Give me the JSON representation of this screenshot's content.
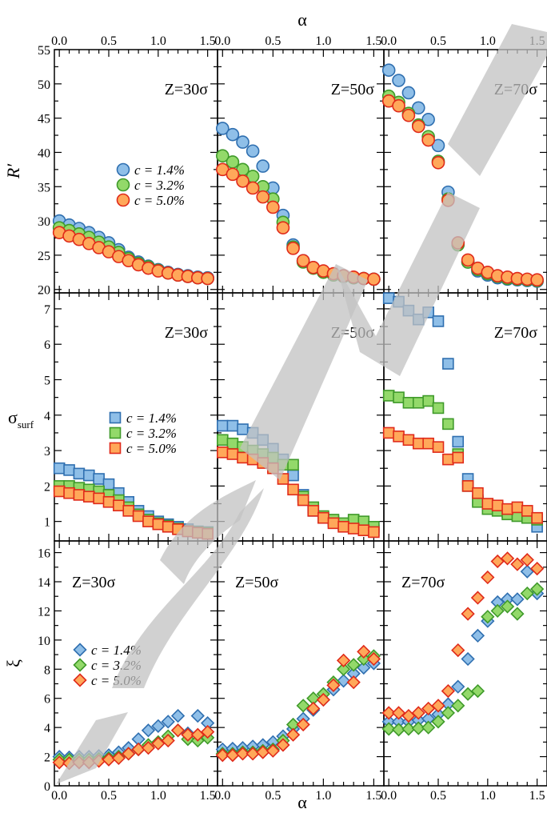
{
  "chart_data": {
    "type": "scatter",
    "x_label": "α",
    "x_ticks": [
      "0.0",
      "0.5",
      "1.0",
      "1.5"
    ],
    "xlim": [
      -0.05,
      1.6
    ],
    "x": [
      0.0,
      0.1,
      0.2,
      0.3,
      0.4,
      0.5,
      0.6,
      0.7,
      0.8,
      0.9,
      1.0,
      1.1,
      1.2,
      1.3,
      1.4,
      1.5
    ],
    "legend_labels": [
      "c = 1.4%",
      "c = 3.2%",
      "c = 5.0%"
    ],
    "series_colors": {
      "c14": {
        "fill": "#8fbfe8",
        "stroke": "#2f6fb0"
      },
      "c32": {
        "fill": "#93d96a",
        "stroke": "#3f9a2a"
      },
      "c50": {
        "fill": "#ffa85a",
        "stroke": "#e02a1a"
      }
    },
    "rows": [
      {
        "key": "R",
        "ylabel": "R′",
        "marker": "circle",
        "ylim": [
          19.5,
          55
        ],
        "y_ticks": [
          20,
          25,
          30,
          35,
          40,
          45,
          50,
          55
        ],
        "legend_panel": 0,
        "panels": [
          {
            "label": "Z=30σ",
            "c14": [
              30.0,
              29.4,
              28.9,
              28.3,
              27.6,
              26.8,
              25.8,
              24.7,
              24.0,
              23.4,
              22.9,
              22.5,
              22.2,
              22.0,
              21.8,
              21.7
            ],
            "c32": [
              29.0,
              28.6,
              28.1,
              27.6,
              26.9,
              26.2,
              25.4,
              24.5,
              23.8,
              23.3,
              22.8,
              22.4,
              22.1,
              21.9,
              21.7,
              21.6
            ],
            "c50": [
              28.3,
              27.8,
              27.3,
              26.7,
              26.1,
              25.5,
              24.8,
              24.2,
              23.6,
              23.1,
              22.7,
              22.4,
              22.1,
              21.9,
              21.7,
              21.6
            ]
          },
          {
            "label": "Z=50σ",
            "c14": [
              43.5,
              42.6,
              41.5,
              40.2,
              38.0,
              34.8,
              30.8,
              26.5,
              24.2,
              23.2,
              22.6,
              22.2,
              21.9,
              21.7,
              21.6,
              21.5
            ],
            "c32": [
              39.5,
              38.6,
              37.5,
              36.5,
              35.0,
              33.2,
              29.8,
              26.2,
              24.0,
              23.1,
              22.5,
              22.1,
              21.9,
              21.7,
              21.6,
              21.5
            ],
            "c50": [
              37.5,
              36.8,
              35.8,
              34.8,
              33.5,
              32.0,
              29.0,
              26.0,
              24.2,
              23.2,
              22.7,
              22.3,
              22.0,
              21.8,
              21.6,
              21.5
            ]
          },
          {
            "label": "Z=70σ",
            "c14": [
              52.0,
              50.5,
              48.7,
              46.5,
              44.8,
              41.0,
              34.2,
              26.7,
              24.0,
              22.7,
              22.1,
              21.7,
              21.5,
              21.4,
              21.3,
              21.2
            ],
            "c32": [
              48.2,
              47.3,
              45.7,
              44.0,
              42.3,
              38.7,
              33.2,
              26.5,
              24.0,
              22.9,
              22.3,
              21.9,
              21.6,
              21.5,
              21.4,
              21.3
            ],
            "c50": [
              47.5,
              46.8,
              45.4,
              43.8,
              41.8,
              38.5,
              33.0,
              26.8,
              24.3,
              23.1,
              22.5,
              22.0,
              21.8,
              21.6,
              21.5,
              21.4
            ]
          }
        ]
      },
      {
        "key": "sigma",
        "ylabel": "σ",
        "ylabel_sub": "surf",
        "marker": "square",
        "ylim": [
          0.45,
          7.45
        ],
        "y_ticks": [
          1,
          2,
          3,
          4,
          5,
          6,
          7
        ],
        "legend_panel": 0,
        "panels": [
          {
            "label": "Z=30σ",
            "c14": [
              2.5,
              2.45,
              2.35,
              2.3,
              2.2,
              2.05,
              1.8,
              1.55,
              1.3,
              1.15,
              1.0,
              0.92,
              0.85,
              0.78,
              0.72,
              0.7
            ],
            "c32": [
              2.0,
              2.0,
              1.95,
              1.9,
              1.85,
              1.75,
              1.6,
              1.4,
              1.2,
              1.05,
              0.95,
              0.88,
              0.8,
              0.73,
              0.7,
              0.68
            ],
            "c50": [
              1.85,
              1.8,
              1.75,
              1.7,
              1.65,
              1.55,
              1.45,
              1.3,
              1.15,
              1.0,
              0.92,
              0.85,
              0.78,
              0.72,
              0.68,
              0.65
            ]
          },
          {
            "label": "Z=50σ",
            "c14": [
              3.7,
              3.7,
              3.6,
              3.5,
              3.3,
              3.05,
              2.75,
              2.3,
              1.75,
              1.3,
              1.1,
              1.0,
              0.9,
              0.85,
              0.8,
              0.75
            ],
            "c32": [
              3.3,
              3.2,
              3.1,
              3.0,
              2.9,
              2.8,
              2.6,
              2.6,
              1.7,
              1.4,
              1.15,
              1.05,
              0.95,
              1.05,
              1.0,
              0.85
            ],
            "c50": [
              2.95,
              2.9,
              2.8,
              2.75,
              2.65,
              2.5,
              2.2,
              1.9,
              1.6,
              1.3,
              1.1,
              0.95,
              0.85,
              0.8,
              0.75,
              0.7
            ]
          },
          {
            "label": "Z=70σ",
            "c14": [
              7.3,
              7.2,
              6.95,
              6.7,
              6.9,
              6.65,
              5.45,
              3.25,
              2.2,
              1.6,
              1.45,
              1.35,
              1.25,
              1.3,
              1.1,
              0.85
            ],
            "c32": [
              4.55,
              4.5,
              4.35,
              4.35,
              4.4,
              4.2,
              3.75,
              2.9,
              2.0,
              1.55,
              1.35,
              1.3,
              1.2,
              1.15,
              1.1,
              1.05
            ],
            "c50": [
              3.5,
              3.4,
              3.3,
              3.2,
              3.2,
              3.1,
              2.75,
              2.8,
              2.0,
              1.8,
              1.5,
              1.45,
              1.35,
              1.4,
              1.3,
              1.1
            ]
          }
        ]
      },
      {
        "key": "xi",
        "ylabel": "ξ",
        "marker": "diamond",
        "ylim": [
          0,
          16.8
        ],
        "y_ticks": [
          0,
          2,
          4,
          6,
          8,
          10,
          12,
          14,
          16
        ],
        "legend_panel": 0,
        "panels": [
          {
            "label": "Z=30σ",
            "c14": [
              2.0,
              1.95,
              2.0,
              2.0,
              2.05,
              2.1,
              2.3,
              2.6,
              3.2,
              3.8,
              4.1,
              4.4,
              4.8,
              3.6,
              4.8,
              4.3
            ],
            "c32": [
              1.8,
              1.8,
              1.8,
              1.8,
              1.85,
              1.9,
              2.0,
              2.2,
              2.5,
              2.8,
              3.0,
              3.4,
              3.8,
              3.2,
              3.1,
              3.3
            ],
            "c50": [
              1.6,
              1.55,
              1.6,
              1.6,
              1.7,
              1.8,
              1.9,
              2.2,
              2.5,
              2.6,
              2.9,
              3.1,
              3.8,
              3.5,
              3.5,
              3.7
            ]
          },
          {
            "label": "Z=50σ",
            "c14": [
              2.5,
              2.55,
              2.6,
              2.7,
              2.8,
              3.0,
              3.4,
              3.9,
              4.6,
              5.2,
              5.9,
              6.6,
              7.2,
              7.7,
              8.1,
              8.4
            ],
            "c32": [
              2.2,
              2.2,
              2.3,
              2.3,
              2.4,
              2.5,
              3.1,
              4.2,
              5.5,
              6.0,
              6.3,
              7.1,
              8.0,
              8.3,
              8.7,
              8.9
            ],
            "c50": [
              2.1,
              2.1,
              2.2,
              2.2,
              2.3,
              2.4,
              2.8,
              3.5,
              4.2,
              5.3,
              5.9,
              6.9,
              8.6,
              7.1,
              9.2,
              8.7
            ]
          },
          {
            "label": "Z=70σ",
            "c14": [
              4.4,
              4.4,
              4.4,
              4.5,
              4.6,
              4.9,
              5.6,
              6.8,
              8.7,
              10.3,
              11.3,
              12.6,
              12.8,
              12.8,
              14.7,
              13.2
            ],
            "c32": [
              3.9,
              3.85,
              3.9,
              3.95,
              4.0,
              4.4,
              5.0,
              5.5,
              6.3,
              6.5,
              11.6,
              12.0,
              12.3,
              11.8,
              13.2,
              13.5
            ],
            "c50": [
              5.0,
              5.0,
              4.8,
              5.0,
              5.3,
              5.5,
              6.5,
              9.3,
              11.8,
              12.9,
              14.3,
              15.4,
              15.6,
              15.2,
              15.5,
              14.9
            ]
          }
        ]
      }
    ]
  }
}
